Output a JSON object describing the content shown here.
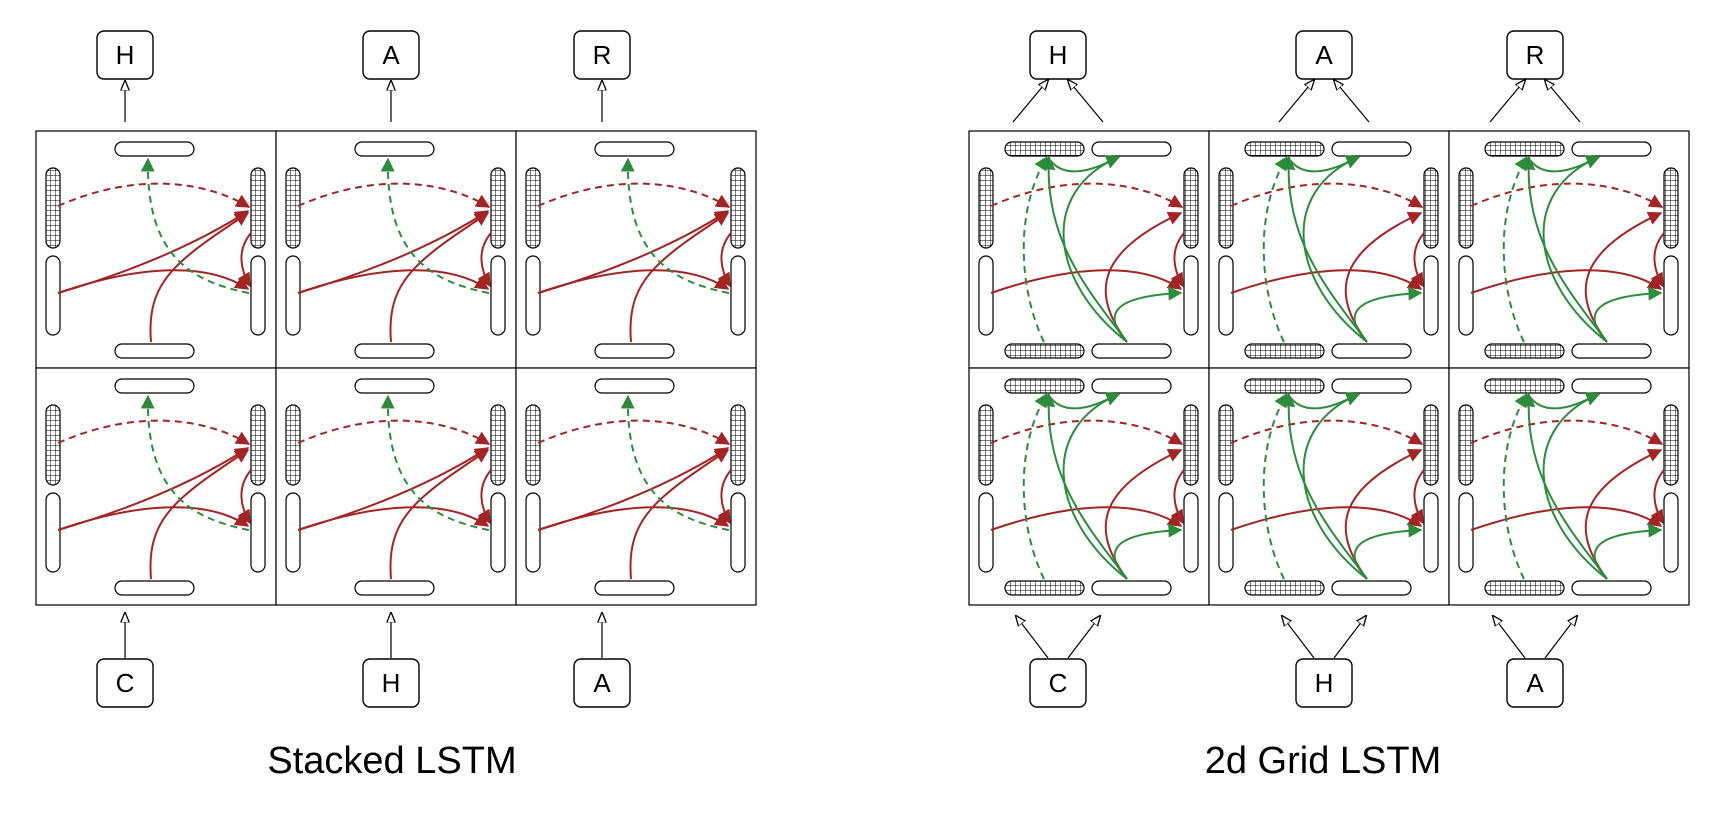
{
  "stacked": {
    "title": "Stacked LSTM",
    "outputs": [
      "H",
      "A",
      "R"
    ],
    "inputs": [
      "C",
      "H",
      "A"
    ]
  },
  "grid": {
    "title": "2d Grid LSTM",
    "outputs": [
      "H",
      "A",
      "R"
    ],
    "inputs": [
      "C",
      "H",
      "A"
    ]
  },
  "colors": {
    "red_arrow": "#a32424",
    "green_arrow": "#2e8b3e",
    "outline": "#000000"
  }
}
